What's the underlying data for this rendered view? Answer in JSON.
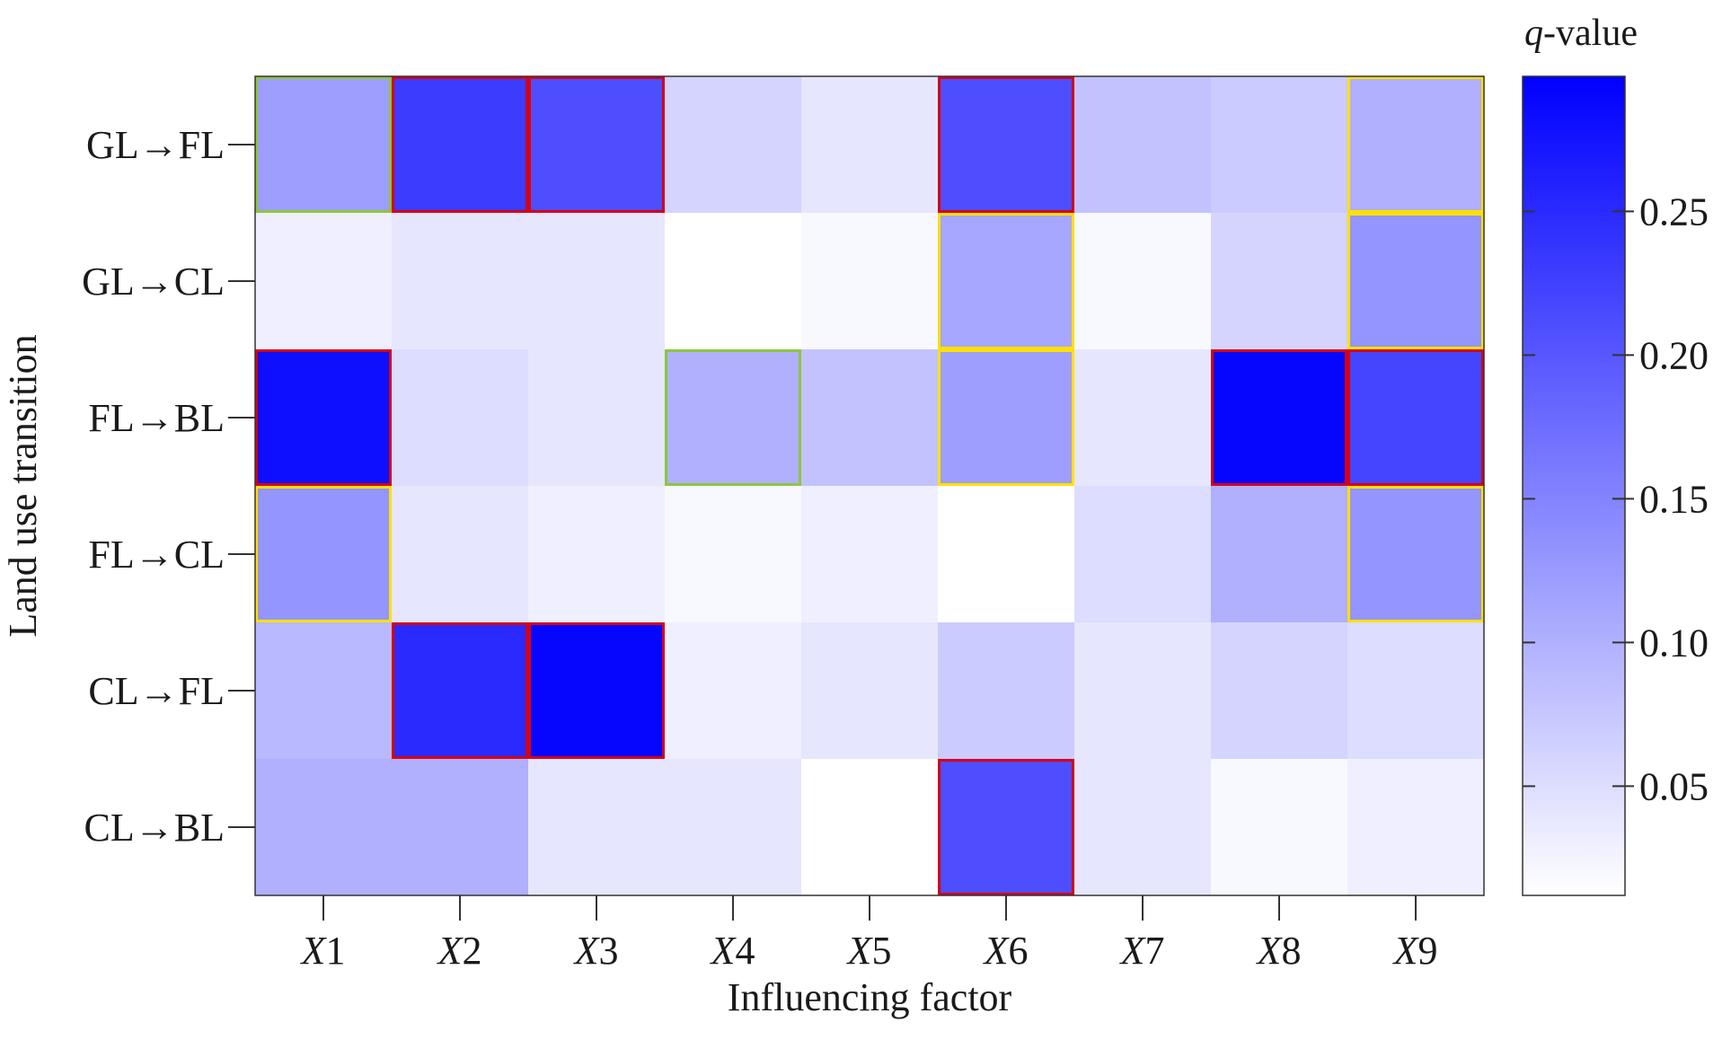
{
  "chart_data": {
    "type": "heatmap",
    "xlabel": "Influencing factor",
    "ylabel": "Land use transition",
    "colorbar_label_italic": "q",
    "colorbar_label_rest": "-value",
    "x_categories": [
      "X1",
      "X2",
      "X3",
      "X4",
      "X5",
      "X6",
      "X7",
      "X8",
      "X9"
    ],
    "x_prefix": "X",
    "y_categories": [
      "GL→FL",
      "GL→CL",
      "FL→BL",
      "FL→CL",
      "CL→FL",
      "CL→BL"
    ],
    "values": [
      [
        0.12,
        0.23,
        0.21,
        0.06,
        0.04,
        0.21,
        0.08,
        0.07,
        0.1
      ],
      [
        0.03,
        0.04,
        0.04,
        0.005,
        0.02,
        0.11,
        0.02,
        0.06,
        0.13
      ],
      [
        0.28,
        0.05,
        0.04,
        0.1,
        0.08,
        0.12,
        0.04,
        0.29,
        0.22
      ],
      [
        0.13,
        0.04,
        0.03,
        0.02,
        0.03,
        0.005,
        0.05,
        0.1,
        0.13
      ],
      [
        0.09,
        0.25,
        0.29,
        0.03,
        0.04,
        0.07,
        0.04,
        0.06,
        0.05
      ],
      [
        0.1,
        0.1,
        0.04,
        0.04,
        0.005,
        0.21,
        0.04,
        0.02,
        0.03
      ]
    ],
    "highlights": [
      [
        1,
        2,
        2,
        0,
        0,
        2,
        0,
        0,
        3
      ],
      [
        0,
        0,
        0,
        0,
        0,
        3,
        0,
        0,
        3
      ],
      [
        2,
        0,
        0,
        1,
        0,
        3,
        0,
        2,
        2
      ],
      [
        3,
        0,
        0,
        0,
        0,
        0,
        0,
        0,
        3
      ],
      [
        0,
        2,
        2,
        0,
        0,
        0,
        0,
        0,
        0
      ],
      [
        0,
        0,
        0,
        0,
        0,
        2,
        0,
        0,
        0
      ]
    ],
    "highlight_colors": {
      "1": "#8dc63f",
      "2": "#d4001a",
      "3": "#ffe000"
    },
    "colorscale": {
      "low": "#ffffff",
      "high": "#0000ff",
      "range": [
        0.012,
        0.297
      ]
    },
    "colorbar_ticks": [
      0.05,
      0.1,
      0.15,
      0.2,
      0.25
    ],
    "colorbar_tick_labels": [
      "0.05",
      "0.10",
      "0.15",
      "0.20",
      "0.25"
    ]
  }
}
